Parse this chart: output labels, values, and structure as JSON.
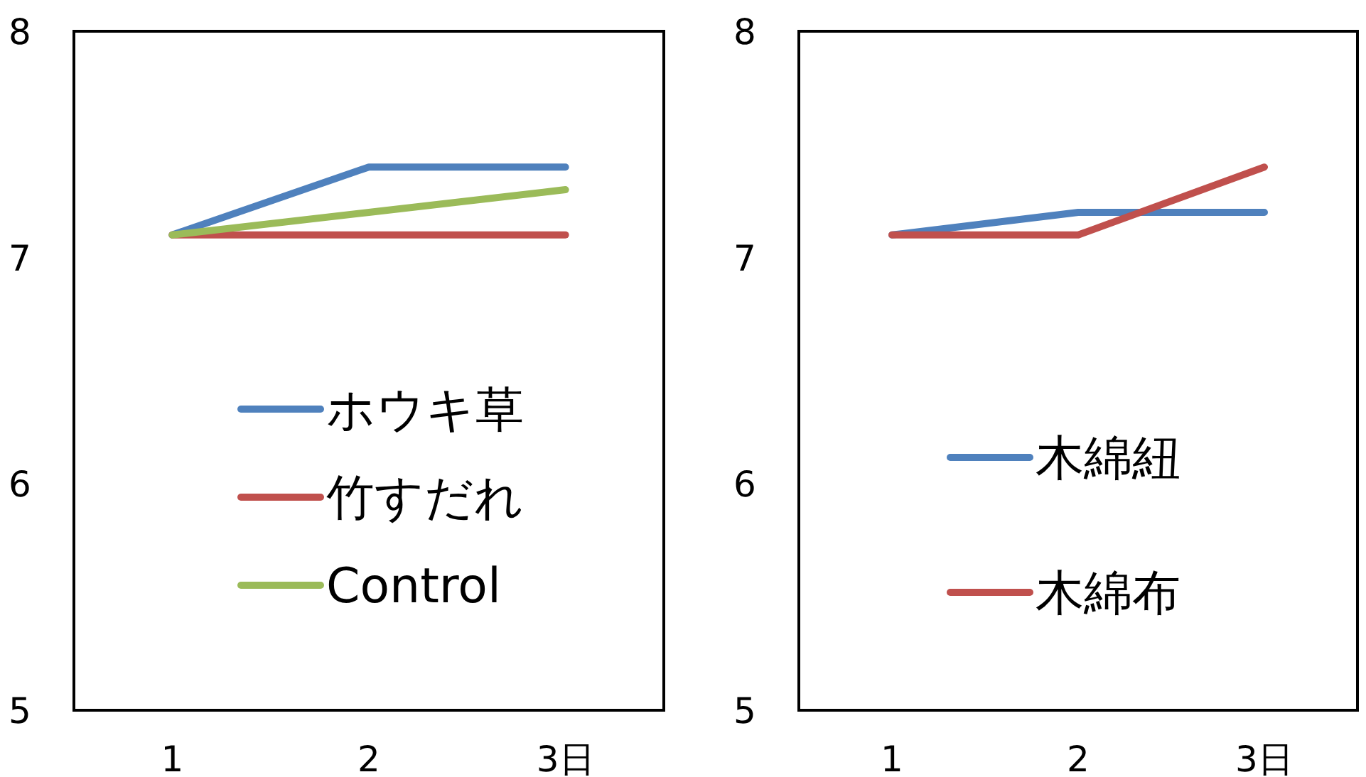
{
  "chart_data": [
    {
      "type": "line",
      "categories": [
        "1",
        "2",
        "3日"
      ],
      "ylim": [
        5,
        8
      ],
      "yticks": [
        5,
        6,
        7,
        8
      ],
      "grid": false,
      "legend": "bottom",
      "marker": "none",
      "line_style": "solid",
      "series": [
        {
          "name": "ホウキ草",
          "color": "#4f81bd",
          "values": [
            7.1,
            7.4,
            7.4
          ]
        },
        {
          "name": "竹すだれ",
          "color": "#c0504d",
          "values": [
            7.1,
            7.1,
            7.1
          ]
        },
        {
          "name": "Control",
          "color": "#9bbb59",
          "values": [
            7.1,
            7.2,
            7.3
          ]
        }
      ]
    },
    {
      "type": "line",
      "categories": [
        "1",
        "2",
        "3日"
      ],
      "ylim": [
        5,
        8
      ],
      "yticks": [
        5,
        6,
        7,
        8
      ],
      "grid": false,
      "legend": "bottom",
      "marker": "none",
      "line_style": "solid",
      "series": [
        {
          "name": "木綿紐",
          "color": "#4f81bd",
          "values": [
            7.1,
            7.2,
            7.2
          ]
        },
        {
          "name": "木綿布",
          "color": "#c0504d",
          "values": [
            7.1,
            7.1,
            7.4
          ]
        }
      ]
    }
  ]
}
